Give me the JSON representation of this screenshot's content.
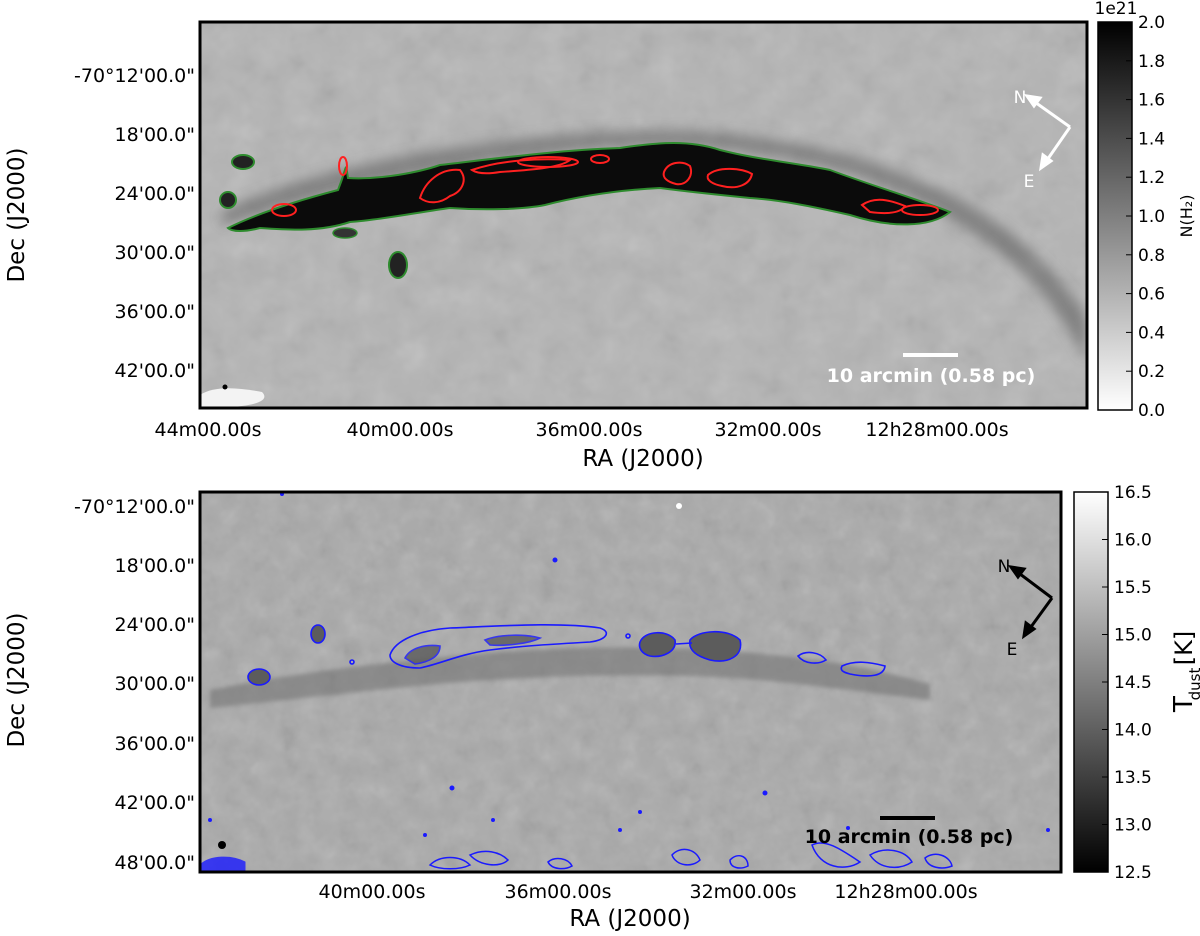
{
  "chart_data": [
    {
      "type": "heatmap",
      "xlabel": "RA (J2000)",
      "ylabel": "Dec (J2000)",
      "x_ticks": [
        "44m00.00s",
        "40m00.00s",
        "36m00.00s",
        "32m00.00s",
        "12h28m00.00s"
      ],
      "y_ticks": [
        "-70°12'00.0\"",
        "18'00.0\"",
        "24'00.0\"",
        "30'00.0\"",
        "36'00.0\"",
        "42'00.0\""
      ],
      "colorbar": {
        "label": "N(H₂)",
        "multiplier": "1e21",
        "ticks": [
          "0.0",
          "0.2",
          "0.4",
          "0.6",
          "0.8",
          "1.0",
          "1.2",
          "1.4",
          "1.6",
          "1.8",
          "2.0"
        ],
        "range": [
          0.0,
          2.0
        ],
        "colormap": "gray_r"
      },
      "scalebar_label": "10 arcmin (0.58 pc)",
      "compass": {
        "north": "N",
        "east": "E",
        "color": "#ffffff"
      },
      "contour_colors": [
        "#2e8b2e",
        "#ff2020"
      ]
    },
    {
      "type": "heatmap",
      "xlabel": "RA (J2000)",
      "ylabel": "Dec (J2000)",
      "x_ticks": [
        "40m00.00s",
        "36m00.00s",
        "32m00.00s",
        "12h28m00.00s"
      ],
      "y_ticks": [
        "-70°12'00.0\"",
        "18'00.0\"",
        "24'00.0\"",
        "30'00.0\"",
        "36'00.0\"",
        "42'00.0\"",
        "48'00.0\""
      ],
      "colorbar": {
        "label": "T",
        "label_sub": "dust",
        "unit": "[K]",
        "ticks": [
          "12.5",
          "13.0",
          "13.5",
          "14.0",
          "14.5",
          "15.0",
          "15.5",
          "16.0",
          "16.5"
        ],
        "range": [
          12.5,
          16.5
        ],
        "colormap": "gray"
      },
      "scalebar_label": "10 arcmin (0.58 pc)",
      "compass": {
        "north": "N",
        "east": "E",
        "color": "#000000"
      },
      "contour_colors": [
        "#1a1aff"
      ]
    }
  ]
}
